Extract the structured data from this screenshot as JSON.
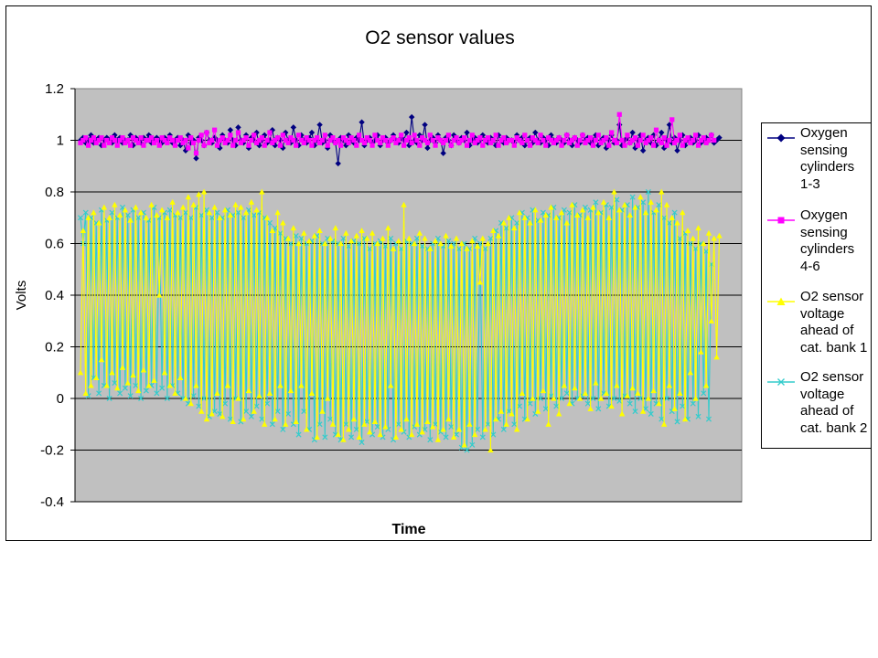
{
  "chart_data": {
    "type": "line",
    "title": "O2 sensor values",
    "xlabel": "Time",
    "ylabel": "Volts",
    "ylim": [
      -0.4,
      1.2
    ],
    "yticks": [
      -0.4,
      -0.2,
      0,
      0.2,
      0.4,
      0.6,
      0.8,
      1,
      1.2
    ],
    "ytick_labels": [
      "-0.4",
      "-0.2",
      "0",
      "0.2",
      "0.4",
      "0.6",
      "0.8",
      "1",
      "1.2"
    ],
    "x_tick_labels": [],
    "grid": "horizontal major gridlines",
    "plot_background": "#c0c0c0",
    "legend_position": "right",
    "n_points": 240,
    "series": [
      {
        "name": "Oxygen sensing cylinders 1-3",
        "color": "#000080",
        "marker": "diamond",
        "values": [
          1.0,
          1.01,
          0.99,
          1.0,
          1.02,
          0.99,
          1.0,
          1.01,
          0.98,
          1.0,
          1.01,
          1.0,
          0.99,
          1.02,
          1.0,
          1.01,
          0.99,
          1.0,
          1.0,
          1.02,
          0.98,
          1.01,
          1.0,
          0.99,
          1.01,
          1.0,
          1.02,
          0.99,
          1.0,
          1.01,
          1.0,
          0.99,
          1.01,
          1.0,
          1.02,
          0.99,
          1.0,
          1.01,
          0.98,
          1.0,
          0.96,
          1.02,
          0.99,
          1.0,
          0.93,
          1.01,
          1.0,
          0.98,
          1.03,
          1.0,
          0.99,
          1.01,
          1.0,
          0.97,
          1.02,
          1.0,
          0.99,
          1.04,
          1.0,
          0.98,
          1.05,
          1.0,
          0.99,
          1.02,
          0.97,
          1.01,
          1.0,
          1.03,
          0.98,
          1.0,
          1.02,
          0.99,
          1.0,
          1.04,
          0.98,
          1.01,
          1.0,
          0.97,
          1.03,
          1.0,
          0.99,
          1.05,
          1.0,
          0.98,
          1.02,
          1.0,
          0.99,
          1.01,
          1.03,
          0.98,
          1.0,
          1.06,
          0.99,
          1.0,
          0.97,
          1.02,
          1.0,
          0.99,
          0.91,
          1.01,
          1.0,
          0.98,
          1.02,
          1.0,
          0.99,
          1.01,
          1.0,
          1.07,
          0.98,
          1.0,
          1.01,
          0.99,
          1.0,
          1.02,
          0.98,
          1.0,
          1.01,
          0.99,
          1.0,
          1.02,
          1.0,
          0.99,
          1.01,
          1.0,
          1.03,
          0.98,
          1.09,
          1.0,
          0.99,
          1.02,
          1.0,
          1.06,
          0.97,
          1.0,
          1.01,
          0.99,
          1.02,
          1.0,
          0.95,
          1.01,
          1.0,
          0.98,
          1.02,
          1.0,
          0.99,
          1.01,
          1.0,
          1.03,
          0.98,
          1.0,
          1.01,
          0.99,
          1.0,
          1.02,
          1.0,
          0.99,
          1.01,
          1.0,
          0.98,
          1.02,
          1.0,
          0.99,
          1.01,
          1.0,
          1.0,
          0.99,
          1.02,
          1.0,
          1.01,
          0.98,
          1.0,
          1.01,
          0.99,
          1.03,
          1.0,
          0.99,
          1.01,
          1.0,
          0.98,
          1.02,
          1.0,
          0.99,
          1.01,
          1.0,
          0.99,
          1.02,
          1.0,
          0.98,
          1.01,
          1.0,
          0.99,
          1.02,
          1.0,
          1.01,
          0.99,
          1.0,
          1.02,
          0.98,
          1.0,
          1.01,
          0.97,
          1.0,
          1.02,
          0.99,
          1.0,
          1.06,
          0.98,
          1.0,
          1.01,
          0.99,
          1.03,
          0.97,
          1.0,
          1.02,
          0.96,
          1.0,
          1.01,
          0.99,
          1.02,
          0.98,
          1.0,
          1.03,
          0.97,
          1.0,
          1.06,
          0.99,
          1.01,
          0.96,
          1.0,
          1.02,
          0.98,
          1.0,
          1.01,
          0.99,
          1.0,
          1.02,
          0.99,
          1.0,
          1.01,
          1.0,
          1.02,
          0.99,
          1.0,
          1.01
        ]
      },
      {
        "name": "Oxygen sensing cylinders 4-6",
        "color": "#ff00ff",
        "marker": "square",
        "values": [
          0.99,
          1.0,
          1.01,
          0.98,
          1.0,
          1.01,
          0.99,
          1.0,
          1.01,
          0.98,
          1.0,
          0.99,
          1.01,
          1.0,
          0.98,
          1.0,
          1.01,
          0.99,
          1.0,
          0.98,
          1.01,
          1.0,
          0.99,
          1.01,
          0.98,
          1.0,
          1.0,
          1.01,
          0.99,
          1.0,
          0.98,
          1.01,
          1.0,
          0.99,
          1.01,
          1.0,
          0.98,
          1.0,
          1.01,
          0.99,
          1.0,
          0.97,
          1.01,
          0.99,
          0.95,
          1.0,
          1.02,
          0.98,
          1.03,
          0.99,
          1.0,
          1.04,
          0.98,
          1.0,
          1.01,
          0.99,
          1.0,
          1.02,
          0.98,
          1.0,
          1.03,
          0.99,
          1.0,
          1.01,
          0.98,
          1.0,
          1.02,
          0.99,
          1.0,
          1.01,
          0.98,
          1.0,
          1.03,
          0.99,
          1.0,
          1.01,
          0.98,
          1.02,
          1.0,
          0.99,
          1.01,
          1.0,
          0.98,
          1.02,
          1.0,
          0.99,
          1.01,
          1.0,
          0.98,
          1.0,
          1.01,
          0.99,
          1.0,
          1.02,
          0.98,
          1.0,
          1.01,
          0.99,
          1.0,
          0.98,
          1.01,
          1.0,
          0.99,
          1.01,
          1.0,
          0.98,
          1.02,
          1.0,
          0.99,
          1.01,
          1.0,
          0.98,
          1.02,
          1.0,
          0.99,
          1.01,
          1.0,
          0.98,
          1.0,
          1.01,
          0.99,
          1.0,
          1.02,
          0.98,
          1.0,
          1.01,
          0.99,
          1.02,
          1.0,
          0.98,
          1.01,
          1.0,
          0.99,
          1.02,
          1.0,
          0.98,
          1.01,
          1.0,
          0.99,
          1.0,
          1.02,
          0.98,
          1.0,
          1.01,
          0.99,
          1.0,
          1.01,
          0.98,
          1.0,
          1.02,
          0.99,
          1.0,
          1.01,
          0.98,
          1.0,
          1.01,
          0.99,
          1.0,
          1.02,
          0.98,
          1.0,
          1.01,
          0.99,
          1.0,
          1.0,
          0.98,
          1.01,
          1.0,
          0.99,
          1.02,
          1.0,
          0.98,
          1.01,
          1.0,
          0.99,
          1.02,
          1.0,
          0.98,
          1.01,
          1.0,
          0.99,
          1.0,
          1.01,
          0.98,
          1.0,
          1.02,
          0.99,
          1.0,
          1.01,
          0.98,
          1.0,
          1.02,
          0.99,
          1.0,
          1.01,
          0.98,
          1.0,
          1.02,
          0.99,
          1.0,
          1.01,
          0.98,
          1.03,
          1.0,
          0.99,
          1.1,
          1.0,
          0.98,
          1.02,
          0.99,
          1.0,
          1.01,
          0.98,
          1.0,
          1.02,
          0.99,
          1.0,
          1.01,
          0.98,
          1.04,
          1.0,
          0.99,
          1.01,
          0.98,
          1.0,
          1.08,
          0.99,
          1.0,
          1.02,
          0.98,
          1.0,
          1.01,
          0.99,
          1.0,
          1.02,
          0.98,
          1.0,
          1.01,
          0.99,
          1.0,
          1.02,
          1.0
        ]
      },
      {
        "name": "O2 sensor voltage ahead of cat. bank 1",
        "color": "#ffff00",
        "marker": "triangle",
        "values": [
          0.1,
          0.65,
          0.02,
          0.7,
          0.05,
          0.72,
          0.08,
          0.68,
          0.15,
          0.74,
          0.05,
          0.7,
          0.1,
          0.75,
          0.04,
          0.71,
          0.12,
          0.73,
          0.06,
          0.69,
          0.09,
          0.74,
          0.03,
          0.72,
          0.11,
          0.7,
          0.05,
          0.75,
          0.07,
          0.71,
          0.4,
          0.73,
          0.1,
          0.7,
          0.05,
          0.76,
          0.02,
          0.72,
          0.08,
          0.74,
          0.0,
          0.78,
          -0.02,
          0.75,
          0.05,
          0.79,
          -0.05,
          0.8,
          -0.08,
          0.72,
          -0.06,
          0.74,
          0.02,
          0.7,
          -0.07,
          0.73,
          0.05,
          0.71,
          -0.09,
          0.75,
          0.0,
          0.74,
          -0.08,
          0.72,
          0.03,
          0.76,
          -0.05,
          0.73,
          0.01,
          0.8,
          -0.1,
          0.7,
          0.02,
          0.65,
          -0.08,
          0.72,
          0.05,
          0.68,
          -0.1,
          0.62,
          0.03,
          0.66,
          -0.09,
          0.6,
          0.05,
          0.64,
          -0.12,
          0.61,
          0.02,
          0.63,
          -0.15,
          0.65,
          -0.05,
          0.6,
          0.0,
          0.62,
          -0.1,
          0.66,
          -0.14,
          0.6,
          -0.16,
          0.64,
          -0.12,
          0.61,
          -0.08,
          0.63,
          -0.15,
          0.65,
          -0.1,
          0.62,
          -0.13,
          0.64,
          -0.09,
          0.6,
          -0.14,
          0.62,
          -0.11,
          0.66,
          0.05,
          0.58,
          -0.15,
          0.61,
          -0.12,
          0.75,
          -0.08,
          0.62,
          -0.14,
          0.6,
          -0.1,
          0.64,
          -0.13,
          0.62,
          -0.09,
          0.58,
          -0.11,
          0.61,
          -0.16,
          0.6,
          -0.12,
          0.63,
          -0.08,
          0.59,
          -0.15,
          0.62,
          -0.12,
          0.6,
          -0.18,
          0.58,
          -0.1,
          0.61,
          -0.14,
          0.59,
          0.45,
          0.62,
          -0.12,
          0.6,
          -0.2,
          0.65,
          -0.08,
          0.63,
          -0.05,
          0.68,
          -0.1,
          0.7,
          -0.06,
          0.66,
          -0.12,
          0.72,
          0.02,
          0.7,
          -0.08,
          0.68,
          0.0,
          0.73,
          -0.05,
          0.69,
          0.03,
          0.71,
          -0.1,
          0.74,
          0.0,
          0.7,
          -0.06,
          0.72,
          0.05,
          0.68,
          -0.02,
          0.75,
          0.04,
          0.71,
          0.0,
          0.73,
          0.02,
          0.7,
          -0.04,
          0.74,
          0.06,
          0.72,
          0.0,
          0.76,
          0.02,
          0.7,
          -0.03,
          0.8,
          0.05,
          0.73,
          -0.06,
          0.75,
          0.01,
          0.71,
          0.04,
          0.74,
          0.02,
          0.78,
          -0.05,
          0.72,
          0.0,
          0.76,
          0.03,
          0.73,
          -0.02,
          0.8,
          -0.1,
          0.75,
          0.05,
          0.7,
          -0.04,
          0.68,
          0.02,
          0.72,
          -0.08,
          0.65,
          0.1,
          0.62,
          0.0,
          0.66,
          0.18,
          0.6,
          0.05,
          0.64,
          0.3,
          0.62,
          0.16,
          0.63
        ]
      },
      {
        "name": "O2 sensor voltage ahead of cat. bank 2",
        "color": "#33cccc",
        "marker": "x",
        "values": [
          0.7,
          0.6,
          0.72,
          0.01,
          0.7,
          0.08,
          0.68,
          0.02,
          0.73,
          0.05,
          0.69,
          0.0,
          0.72,
          0.06,
          0.7,
          0.02,
          0.74,
          0.04,
          0.71,
          0.01,
          0.73,
          0.05,
          0.7,
          0.0,
          0.72,
          0.03,
          0.69,
          0.05,
          0.74,
          0.02,
          0.7,
          0.04,
          0.72,
          0.0,
          0.73,
          0.05,
          0.71,
          0.02,
          0.7,
          0.0,
          0.72,
          -0.02,
          0.7,
          0.01,
          0.74,
          -0.03,
          0.71,
          0.0,
          0.73,
          -0.07,
          0.7,
          -0.05,
          0.72,
          -0.06,
          0.7,
          -0.02,
          0.73,
          -0.08,
          0.71,
          0.0,
          0.72,
          -0.09,
          0.7,
          -0.05,
          0.73,
          -0.07,
          0.71,
          -0.03,
          0.72,
          -0.08,
          0.7,
          -0.02,
          0.68,
          -0.1,
          0.66,
          -0.05,
          0.64,
          -0.12,
          0.62,
          -0.06,
          0.6,
          -0.1,
          0.63,
          -0.14,
          0.62,
          -0.05,
          0.6,
          -0.12,
          0.61,
          -0.16,
          0.63,
          -0.1,
          0.6,
          -0.15,
          0.62,
          -0.08,
          0.61,
          -0.14,
          0.6,
          -0.16,
          0.62,
          -0.1,
          0.59,
          -0.15,
          0.61,
          -0.12,
          0.6,
          -0.17,
          0.62,
          -0.09,
          0.58,
          -0.14,
          0.6,
          -0.11,
          0.61,
          -0.15,
          0.59,
          -0.12,
          0.62,
          -0.16,
          0.6,
          -0.1,
          0.58,
          -0.13,
          0.61,
          -0.15,
          0.6,
          -0.11,
          0.62,
          -0.14,
          0.59,
          -0.12,
          0.58,
          -0.16,
          0.6,
          -0.1,
          0.62,
          -0.13,
          0.59,
          -0.15,
          0.61,
          -0.11,
          0.6,
          -0.14,
          0.58,
          -0.19,
          0.6,
          -0.2,
          0.58,
          -0.18,
          0.62,
          -0.12,
          0.6,
          -0.15,
          0.58,
          -0.1,
          0.62,
          -0.14,
          0.65,
          -0.08,
          0.68,
          -0.12,
          0.66,
          -0.05,
          0.7,
          -0.1,
          0.68,
          -0.03,
          0.72,
          -0.08,
          0.7,
          -0.02,
          0.73,
          -0.06,
          0.69,
          0.0,
          0.72,
          -0.04,
          0.71,
          0.01,
          0.74,
          -0.03,
          0.7,
          0.0,
          0.73,
          0.02,
          0.72,
          -0.02,
          0.75,
          0.0,
          0.71,
          0.01,
          0.74,
          -0.02,
          0.73,
          0.0,
          0.76,
          -0.04,
          0.72,
          0.02,
          0.75,
          -0.03,
          0.74,
          0.0,
          0.77,
          -0.01,
          0.73,
          0.01,
          0.75,
          -0.02,
          0.78,
          -0.05,
          0.74,
          0.0,
          0.76,
          -0.04,
          0.8,
          -0.06,
          0.72,
          -0.02,
          0.75,
          -0.08,
          0.7,
          0.0,
          0.68,
          -0.05,
          0.72,
          -0.09,
          0.62,
          -0.03,
          0.64,
          -0.08,
          0.6,
          -0.02,
          0.58,
          -0.07,
          0.6,
          0.02,
          0.57,
          -0.08,
          0.52
        ]
      }
    ],
    "legend_entries": [
      "Oxygen\nsensing\ncylinders\n1-3",
      "Oxygen\nsensing\ncylinders\n4-6",
      "O2 sensor\nvoltage\nahead of\ncat. bank 1",
      "O2 sensor\nvoltage\nahead of\ncat. bank 2"
    ]
  }
}
